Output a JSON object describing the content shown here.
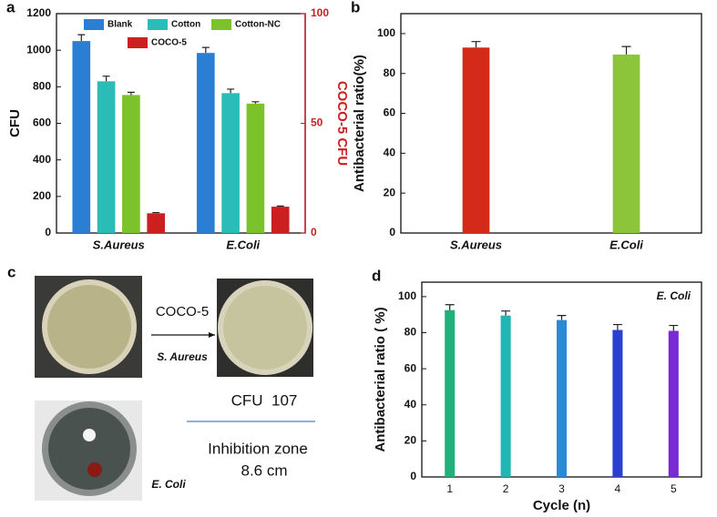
{
  "chart_data": [
    {
      "type": "bar",
      "panel_label": "a",
      "ylabel": "CFU",
      "y2label": "COCO-5 CFU",
      "categories": [
        "S.Aureus",
        "E.Coli"
      ],
      "series": [
        {
          "name": "Blank",
          "color": "#2a7fd4",
          "values": [
            1050,
            985
          ],
          "errors": [
            35,
            30
          ]
        },
        {
          "name": "Cotton",
          "color": "#2bbcb8",
          "values": [
            830,
            765
          ],
          "errors": [
            28,
            22
          ]
        },
        {
          "name": "Cotton-NC",
          "color": "#7cc22a",
          "values": [
            755,
            708
          ],
          "errors": [
            15,
            10
          ]
        },
        {
          "name": "COCO-5",
          "color": "#cc2020",
          "axis": "y2",
          "values": [
            9,
            12
          ],
          "errors": [
            0.3,
            0.3
          ]
        }
      ],
      "ylim": [
        0,
        1200
      ],
      "yticks": [
        0,
        200,
        400,
        600,
        800,
        1000,
        1200
      ],
      "y2lim": [
        0,
        100
      ],
      "y2ticks": [
        0,
        50,
        100
      ]
    },
    {
      "type": "bar",
      "panel_label": "b",
      "ylabel": "Antibacterial ratio(%)",
      "categories": [
        "S.Aureus",
        "E.Coli"
      ],
      "values": [
        93,
        89.5
      ],
      "errors": [
        3,
        4
      ],
      "colors": [
        "#d42a1a",
        "#8cc43a"
      ],
      "ylim": [
        0,
        110
      ],
      "yticks": [
        0,
        20,
        40,
        60,
        80,
        100
      ]
    },
    {
      "type": "bar",
      "panel_label": "d",
      "ylabel": "Antibacterial ratio ( %)",
      "xlabel": "Cycle (n)",
      "annotation": "E. Coli",
      "categories": [
        "1",
        "2",
        "3",
        "4",
        "5"
      ],
      "values": [
        92.5,
        89.5,
        87,
        81.5,
        81
      ],
      "errors": [
        3,
        2.5,
        2.5,
        3,
        3
      ],
      "colors": [
        "#22b07a",
        "#22b5b5",
        "#2a8ad4",
        "#2a40d0",
        "#7a2ad4"
      ],
      "ylim": [
        0,
        108
      ],
      "yticks": [
        0,
        20,
        40,
        60,
        80,
        100
      ]
    }
  ],
  "panel_c": {
    "panel_label": "c",
    "treatment": "COCO-5",
    "strain_top": "S. Aureus",
    "cfu": "CFU  107",
    "zone_label": "Inhibition zone",
    "zone_value": "8.6 cm",
    "strain_bottom": "E. Coli"
  }
}
